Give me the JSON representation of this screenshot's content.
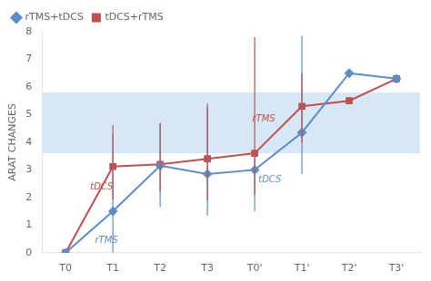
{
  "chart_data": {
    "type": "line",
    "categories": [
      "T0",
      "T1",
      "T2",
      "T3",
      "T0'",
      "T1'",
      "T2'",
      "T3'"
    ],
    "series": [
      {
        "name": "rTMS+tDCS",
        "color": "#5B8DC8",
        "marker": "diamond",
        "values": [
          0,
          1.5,
          3.15,
          2.85,
          3.0,
          4.35,
          6.5,
          6.3
        ],
        "yerr_low": [
          0,
          1.5,
          1.5,
          1.5,
          1.5,
          1.5,
          0,
          0
        ],
        "yerr_high": [
          0,
          2.8,
          1.5,
          2.4,
          0.6,
          3.5,
          0,
          0
        ]
      },
      {
        "name": "tDCS+rTMS",
        "color": "#C0504D",
        "marker": "square",
        "values": [
          0,
          3.12,
          3.2,
          3.4,
          3.6,
          5.3,
          5.5,
          6.3
        ],
        "yerr_low": [
          0,
          1.2,
          1.0,
          1.5,
          1.5,
          1.3,
          0,
          0
        ],
        "yerr_high": [
          0,
          1.5,
          1.5,
          2.0,
          4.2,
          1.2,
          0,
          0
        ]
      }
    ],
    "ylabel": "ARAT CHANGES",
    "ylim": [
      0,
      8
    ],
    "yticks": [
      0,
      1,
      2,
      3,
      4,
      5,
      6,
      7,
      8
    ],
    "grid": false,
    "legend": "upper left",
    "shade": {
      "ymin": 3.6,
      "ymax": 5.8,
      "color": "#D6E8F5"
    },
    "annotations": [
      {
        "text": "tDCS",
        "x": 0.52,
        "y": 2.3,
        "color": "#C0504D"
      },
      {
        "text": "rTMS",
        "x": 0.62,
        "y": 0.35,
        "color": "#5B8DC8"
      },
      {
        "text": "tDCS",
        "x": 4.08,
        "y": 2.55,
        "color": "#5B8DC8"
      },
      {
        "text": "rTMS",
        "x": 3.95,
        "y": 4.75,
        "color": "#C0504D"
      }
    ]
  }
}
